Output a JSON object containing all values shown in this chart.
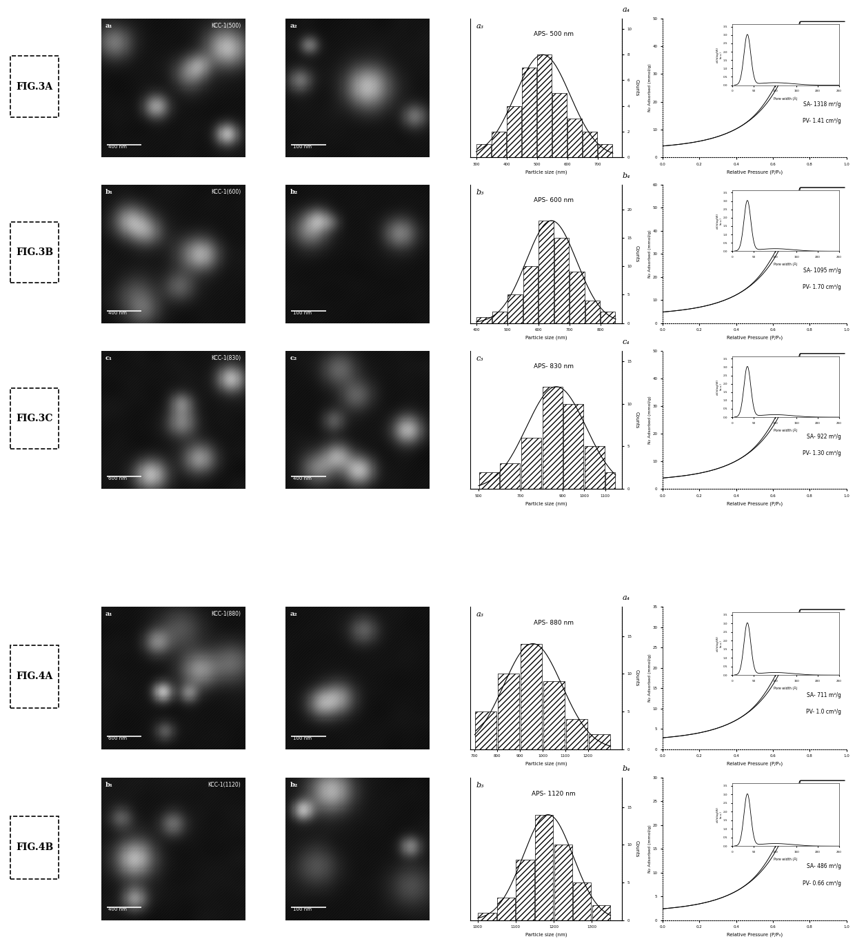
{
  "background_color": "#ffffff",
  "fig3_rows": [
    {
      "label": "FIG.3A",
      "kcc_label1": "KCC-1(500)",
      "sem_sub1": "a₁",
      "sem_sub2": "a₂",
      "sem_scale1": "400 nm",
      "sem_scale2": "100 nm",
      "hist_label": "a₃",
      "hist_title": "APS- 500 nm",
      "hist_bins": [
        300,
        350,
        400,
        450,
        500,
        550,
        600,
        650,
        700,
        750
      ],
      "hist_counts": [
        1,
        2,
        4,
        7,
        8,
        5,
        3,
        2,
        1
      ],
      "hist_xlim": [
        280,
        780
      ],
      "hist_xticks": [
        300,
        400,
        500,
        600,
        700
      ],
      "hist_xlabel": "Particle size (nm)",
      "ads_label": "a₄",
      "ads_sa": "SA- 1318 m²/g",
      "ads_pv": "PV- 1.41 cm³/g",
      "ads_ylim": [
        0,
        50
      ],
      "ads_yticks": [
        0,
        10,
        20,
        30,
        40,
        50
      ],
      "ads_xticks": [
        0.0,
        0.2,
        0.4,
        0.6,
        0.8,
        1.0
      ]
    },
    {
      "label": "FIG.3B",
      "kcc_label1": "KCC-1(600)",
      "sem_sub1": "b₁",
      "sem_sub2": "b₂",
      "sem_scale1": "400 nm",
      "sem_scale2": "100 nm",
      "hist_label": "b₃",
      "hist_title": "APS- 600 nm",
      "hist_bins": [
        400,
        450,
        500,
        550,
        600,
        650,
        700,
        750,
        800,
        850
      ],
      "hist_counts": [
        1,
        2,
        5,
        10,
        18,
        15,
        9,
        4,
        2
      ],
      "hist_xlim": [
        380,
        870
      ],
      "hist_xticks": [
        400,
        500,
        600,
        700,
        800
      ],
      "hist_xlabel": "Particle size (nm)",
      "ads_label": "b₄",
      "ads_sa": "SA- 1095 m²/g",
      "ads_pv": "PV- 1.70 cm³/g",
      "ads_ylim": [
        0,
        60
      ],
      "ads_yticks": [
        0,
        10,
        20,
        30,
        40,
        50,
        60
      ],
      "ads_xticks": [
        0.0,
        0.2,
        0.4,
        0.6,
        0.8,
        1.0
      ]
    },
    {
      "label": "FIG.3C",
      "kcc_label1": "KCC-1(830)",
      "sem_sub1": "c₁",
      "sem_sub2": "c₂",
      "sem_scale1": "600 nm",
      "sem_scale2": "400 nm",
      "hist_label": "c₃",
      "hist_title": "APS- 830 nm",
      "hist_bins": [
        500,
        600,
        700,
        800,
        900,
        1000,
        1100,
        1150
      ],
      "hist_counts": [
        2,
        3,
        6,
        12,
        10,
        5,
        2
      ],
      "hist_xlim": [
        460,
        1180
      ],
      "hist_xticks": [
        500,
        700,
        900,
        1000,
        1100
      ],
      "hist_xlabel": "Particle size (nm)",
      "ads_label": "c₄",
      "ads_sa": "SA- 922 m²/g",
      "ads_pv": "PV- 1.30 cm³/g",
      "ads_ylim": [
        0,
        50
      ],
      "ads_yticks": [
        0,
        10,
        20,
        30,
        40,
        50
      ],
      "ads_xticks": [
        0.0,
        0.2,
        0.4,
        0.6,
        0.8,
        1.0
      ]
    }
  ],
  "fig4_rows": [
    {
      "label": "FIG.4A",
      "kcc_label1": "KCC-1(880)",
      "sem_sub1": "a₁",
      "sem_sub2": "a₂",
      "sem_scale1": "600 nm",
      "sem_scale2": "100 nm",
      "hist_label": "a₃",
      "hist_title": "APS- 880 nm",
      "hist_bins": [
        700,
        800,
        900,
        1000,
        1100,
        1200,
        1300
      ],
      "hist_counts": [
        5,
        10,
        14,
        9,
        4,
        2
      ],
      "hist_xlim": [
        680,
        1350
      ],
      "hist_xticks": [
        700,
        800,
        900,
        1000,
        1100,
        1200
      ],
      "hist_xlabel": "Particle size (nm)",
      "ads_label": "a₄",
      "ads_sa": "SA- 711 m²/g",
      "ads_pv": "PV- 1.0 cm³/g",
      "ads_ylim": [
        0,
        35
      ],
      "ads_yticks": [
        0,
        5,
        10,
        15,
        20,
        25,
        30,
        35
      ],
      "ads_xticks": [
        0.0,
        0.2,
        0.4,
        0.6,
        0.8,
        1.0
      ]
    },
    {
      "label": "FIG.4B",
      "kcc_label1": "KCC-1(1120)",
      "sem_sub1": "b₁",
      "sem_sub2": "b₂",
      "sem_scale1": "400 nm",
      "sem_scale2": "100 nm",
      "hist_label": "b₃",
      "hist_title": "APS- 1120 nm",
      "hist_bins": [
        1000,
        1050,
        1100,
        1150,
        1200,
        1250,
        1300,
        1350
      ],
      "hist_counts": [
        1,
        3,
        8,
        14,
        10,
        5,
        2
      ],
      "hist_xlim": [
        980,
        1380
      ],
      "hist_xticks": [
        1000,
        1100,
        1200,
        1300
      ],
      "hist_xlabel": "Particle size (nm)",
      "ads_label": "b₄",
      "ads_sa": "SA- 486 m²/g",
      "ads_pv": "PV- 0.66 cm³/g",
      "ads_ylim": [
        0,
        30
      ],
      "ads_yticks": [
        0,
        5,
        10,
        15,
        20,
        25,
        30
      ],
      "ads_xticks": [
        0.0,
        0.2,
        0.4,
        0.6,
        0.8,
        1.0
      ]
    }
  ]
}
